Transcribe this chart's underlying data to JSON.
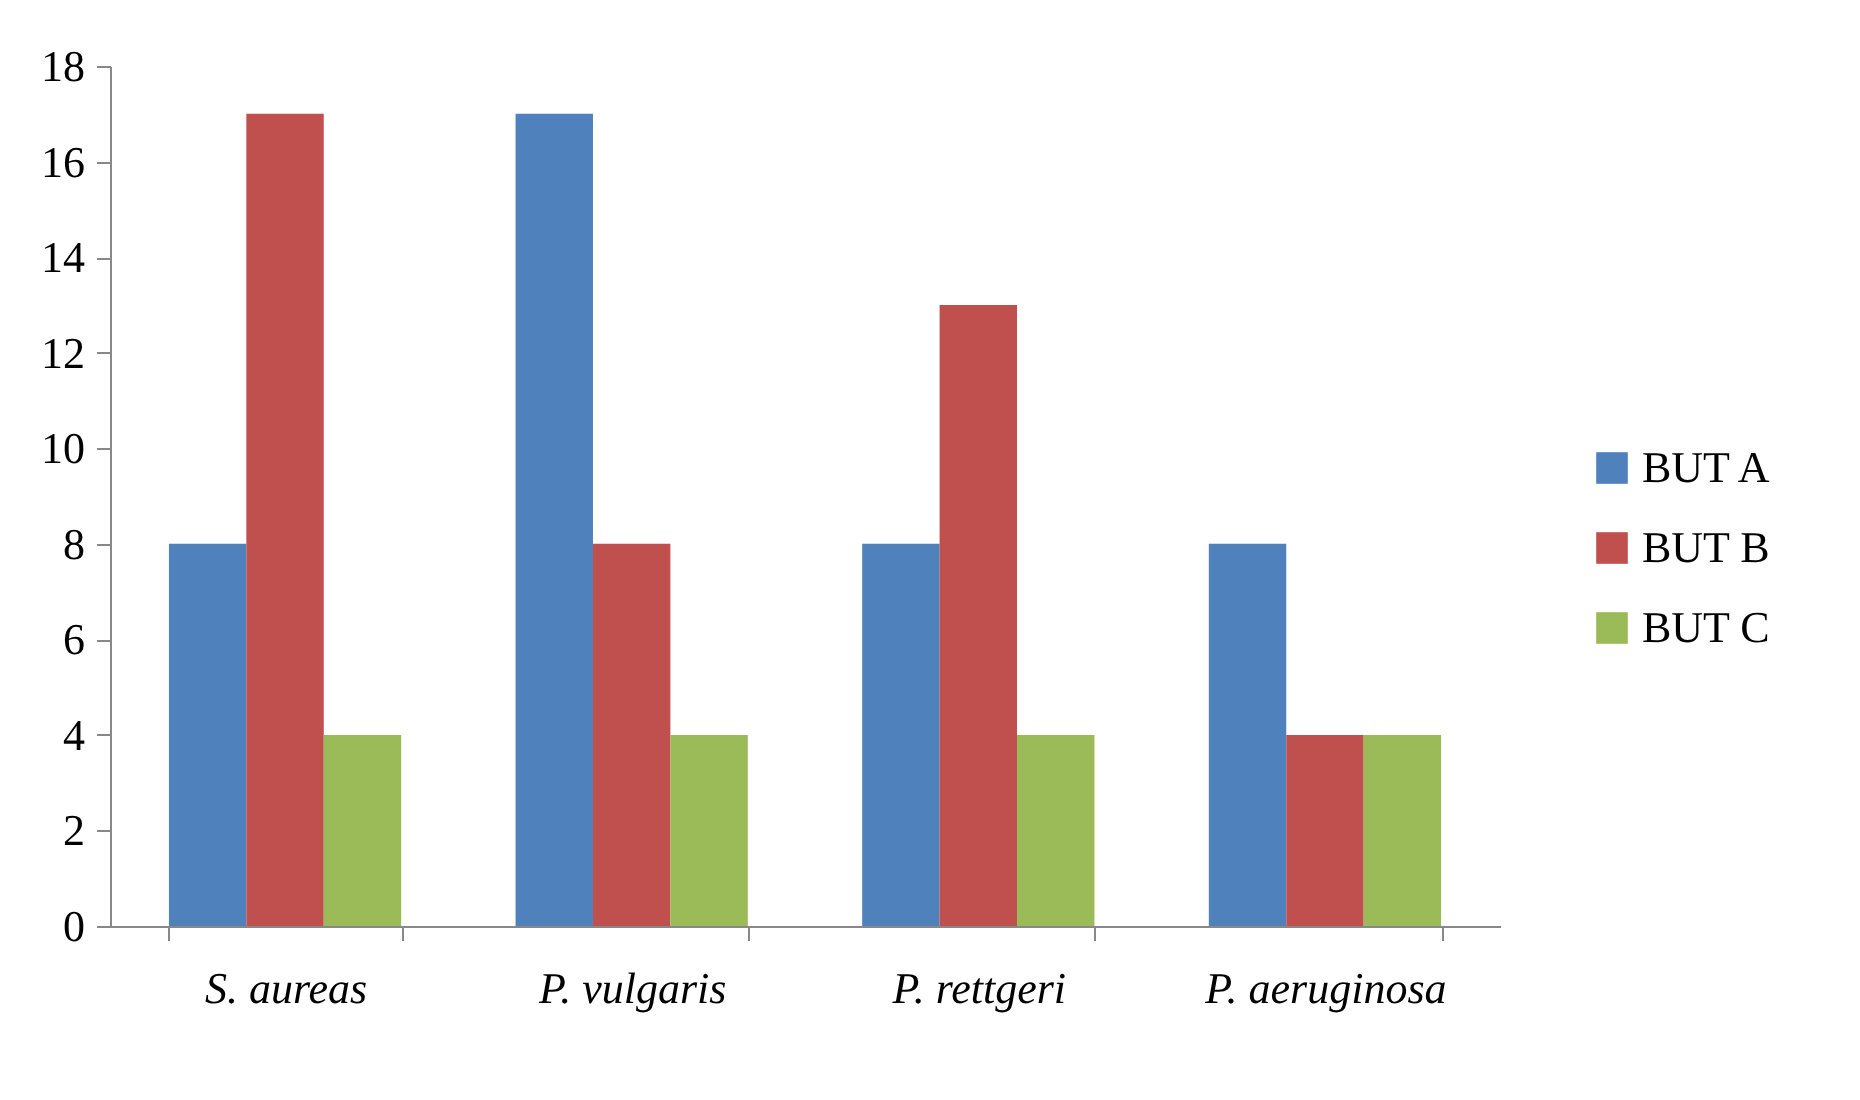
{
  "chart_data": {
    "type": "bar",
    "categories": [
      "S. aureas",
      "P. vulgaris",
      "P. rettgeri",
      "P. aeruginosa"
    ],
    "series": [
      {
        "name": "BUT A",
        "color": "#4f81bd",
        "values": [
          8,
          17,
          8,
          8
        ]
      },
      {
        "name": "BUT B",
        "color": "#c0504d",
        "values": [
          17,
          8,
          13,
          4
        ]
      },
      {
        "name": "BUT C",
        "color": "#9bbb59",
        "values": [
          4,
          4,
          4,
          4
        ]
      }
    ],
    "ylim": [
      0,
      18
    ],
    "yticks": [
      0,
      2,
      4,
      6,
      8,
      10,
      12,
      14,
      16,
      18
    ],
    "grid": false,
    "legend": "right"
  }
}
